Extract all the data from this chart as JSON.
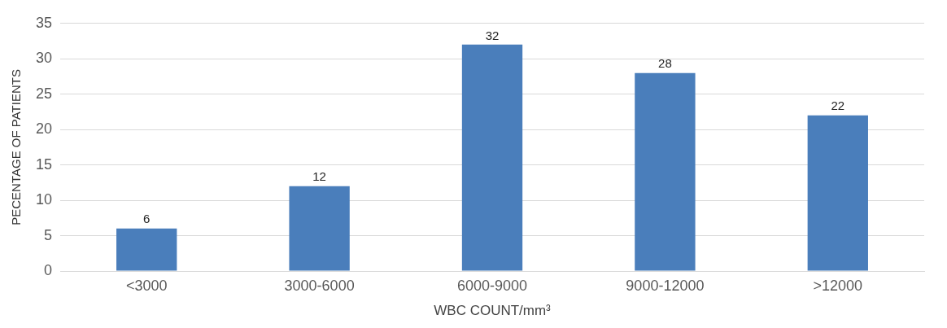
{
  "chart_data": {
    "type": "bar",
    "xlabel": "WBC COUNT/mm³",
    "ylabel": "PECENTAGE OF PATIENTS",
    "categories": [
      "<3000",
      "3000-6000",
      "6000-9000",
      "9000-12000",
      ">12000"
    ],
    "values": [
      6,
      12,
      32,
      28,
      22
    ],
    "color": "#4a7ebb",
    "ylim": [
      0,
      35
    ],
    "yticks": [
      0,
      5,
      10,
      15,
      20,
      25,
      30,
      35
    ],
    "grid": "y",
    "data_labels": true
  }
}
